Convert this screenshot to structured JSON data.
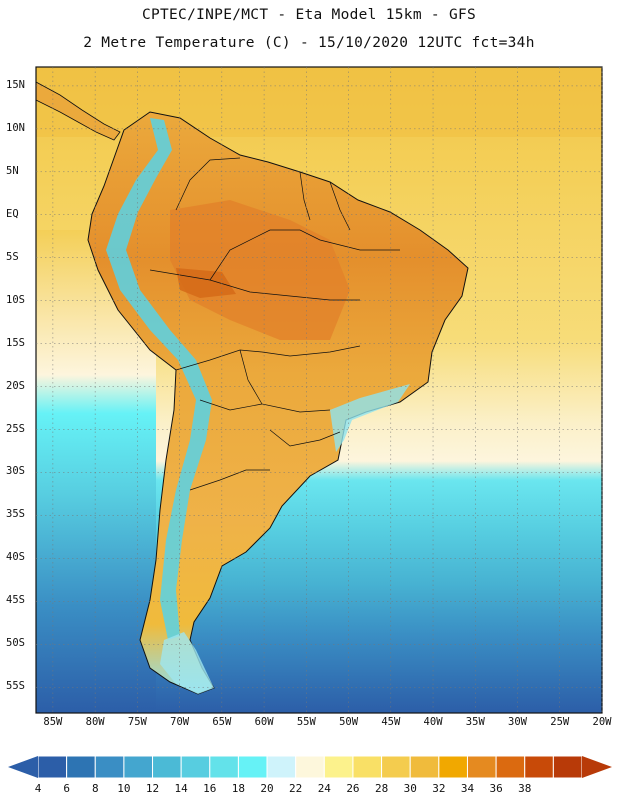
{
  "header": {
    "title_line1": "CPTEC/INPE/MCT -  Eta Model 15km - GFS",
    "title_line2": "2 Metre Temperature (C) - 15/10/2020 12UTC fct=34h"
  },
  "map": {
    "lat_labels": [
      "15N",
      "10N",
      "5N",
      "EQ",
      "5S",
      "10S",
      "15S",
      "20S",
      "25S",
      "30S",
      "35S",
      "40S",
      "45S",
      "50S",
      "55S"
    ],
    "lon_labels": [
      "85W",
      "80W",
      "75W",
      "70W",
      "65W",
      "60W",
      "55W",
      "50W",
      "45W",
      "40W",
      "35W",
      "30W",
      "25W",
      "20W"
    ],
    "colors": {
      "land_border": "#111111",
      "ocean_north": "#f0c44a",
      "ocean_warm": "#f5d868",
      "ocean_mid": "#fdf5dd",
      "ocean_cool": "#5fe3ef",
      "ocean_cold": "#4bbad6",
      "ocean_colder": "#3a8ec4",
      "ocean_coldest": "#2d63a8",
      "land_hot": "#e28a2a",
      "land_warm": "#eba93c",
      "andes": "#57d2e8"
    }
  },
  "colorbar": {
    "labels": [
      "4",
      "6",
      "8",
      "10",
      "12",
      "14",
      "16",
      "18",
      "20",
      "22",
      "24",
      "26",
      "28",
      "30",
      "32",
      "34",
      "36",
      "38"
    ],
    "colors": [
      "#2c5ea8",
      "#2d74b3",
      "#3a8ec4",
      "#44a6cf",
      "#4bbad6",
      "#57cde0",
      "#63e2ea",
      "#66f2f6",
      "#cff3fb",
      "#fdf7dc",
      "#fcf28c",
      "#f9e066",
      "#f4cc4e",
      "#f0bb3c",
      "#f1a800",
      "#e58a20",
      "#db6a10",
      "#c84a08",
      "#b83a08"
    ]
  }
}
